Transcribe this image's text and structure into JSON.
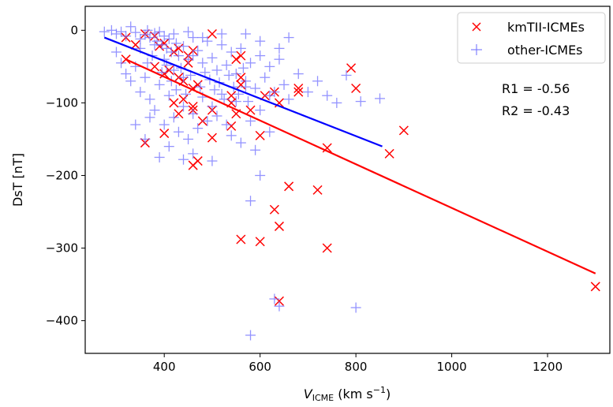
{
  "chart_data": {
    "type": "scatter",
    "xlabel": {
      "main": "V",
      "sub": "ICME",
      "unit_pre": " (km s",
      "unit_sup": "−1",
      "unit_post": ")"
    },
    "ylabel": "DsT [nT]",
    "xlim": [
      235,
      1330
    ],
    "ylim": [
      -445,
      33
    ],
    "xticks": [
      400,
      600,
      800,
      1000,
      1200
    ],
    "yticks": [
      0,
      -100,
      -200,
      -300,
      -400
    ],
    "xtick_labels": [
      "400",
      "600",
      "800",
      "1000",
      "1200"
    ],
    "ytick_labels": [
      "0",
      "−100",
      "−200",
      "−300",
      "−400"
    ],
    "grid": false,
    "legend_position": "top-right",
    "annotations": [
      "R1 = -0.56",
      "R2 = -0.43"
    ],
    "series": [
      {
        "name": "kmTII-ICMEs",
        "marker": "x",
        "color": "#ff0000",
        "points": [
          [
            320,
            -10
          ],
          [
            340,
            -20
          ],
          [
            360,
            -5
          ],
          [
            380,
            -8
          ],
          [
            390,
            -22
          ],
          [
            400,
            -18
          ],
          [
            420,
            -30
          ],
          [
            430,
            -25
          ],
          [
            450,
            -35
          ],
          [
            460,
            -28
          ],
          [
            500,
            -5
          ],
          [
            320,
            -40
          ],
          [
            380,
            -50
          ],
          [
            400,
            -60
          ],
          [
            410,
            -55
          ],
          [
            430,
            -65
          ],
          [
            440,
            -70
          ],
          [
            450,
            -45
          ],
          [
            460,
            -80
          ],
          [
            470,
            -75
          ],
          [
            420,
            -100
          ],
          [
            430,
            -115
          ],
          [
            440,
            -95
          ],
          [
            460,
            -105
          ],
          [
            460,
            -110
          ],
          [
            480,
            -125
          ],
          [
            500,
            -110
          ],
          [
            500,
            -148
          ],
          [
            540,
            -100
          ],
          [
            540,
            -90
          ],
          [
            540,
            -132
          ],
          [
            550,
            -115
          ],
          [
            550,
            -40
          ],
          [
            560,
            -35
          ],
          [
            560,
            -65
          ],
          [
            560,
            -75
          ],
          [
            580,
            -110
          ],
          [
            600,
            -145
          ],
          [
            610,
            -90
          ],
          [
            630,
            -85
          ],
          [
            640,
            -100
          ],
          [
            680,
            -80
          ],
          [
            680,
            -85
          ],
          [
            740,
            -162
          ],
          [
            790,
            -52
          ],
          [
            800,
            -80
          ],
          [
            870,
            -170
          ],
          [
            900,
            -138
          ],
          [
            360,
            -155
          ],
          [
            400,
            -142
          ],
          [
            460,
            -186
          ],
          [
            470,
            -180
          ],
          [
            660,
            -215
          ],
          [
            720,
            -220
          ],
          [
            630,
            -247
          ],
          [
            640,
            -270
          ],
          [
            560,
            -288
          ],
          [
            600,
            -291
          ],
          [
            740,
            -300
          ],
          [
            640,
            -373
          ],
          [
            1300,
            -353
          ]
        ]
      },
      {
        "name": "other-ICMEs",
        "marker": "+",
        "color": "#7070ff",
        "points": [
          [
            275,
            -2
          ],
          [
            290,
            0
          ],
          [
            300,
            -5
          ],
          [
            310,
            -2
          ],
          [
            320,
            -8
          ],
          [
            330,
            5
          ],
          [
            340,
            -3
          ],
          [
            350,
            -12
          ],
          [
            360,
            -6
          ],
          [
            365,
            0
          ],
          [
            370,
            -10
          ],
          [
            380,
            -4
          ],
          [
            385,
            -15
          ],
          [
            390,
            -2
          ],
          [
            395,
            -20
          ],
          [
            400,
            -8
          ],
          [
            405,
            -25
          ],
          [
            410,
            -12
          ],
          [
            415,
            -30
          ],
          [
            420,
            -5
          ],
          [
            425,
            -18
          ],
          [
            430,
            -35
          ],
          [
            440,
            -22
          ],
          [
            450,
            -40
          ],
          [
            460,
            -10
          ],
          [
            470,
            -28
          ],
          [
            480,
            -45
          ],
          [
            490,
            -15
          ],
          [
            500,
            -38
          ],
          [
            510,
            -55
          ],
          [
            520,
            -20
          ],
          [
            530,
            -48
          ],
          [
            540,
            -30
          ],
          [
            550,
            -60
          ],
          [
            560,
            -25
          ],
          [
            570,
            -70
          ],
          [
            580,
            -45
          ],
          [
            590,
            -80
          ],
          [
            600,
            -35
          ],
          [
            610,
            -65
          ],
          [
            620,
            -50
          ],
          [
            630,
            -85
          ],
          [
            640,
            -40
          ],
          [
            650,
            -75
          ],
          [
            660,
            -95
          ],
          [
            680,
            -60
          ],
          [
            700,
            -85
          ],
          [
            720,
            -70
          ],
          [
            740,
            -90
          ],
          [
            760,
            -100
          ],
          [
            780,
            -62
          ],
          [
            810,
            -98
          ],
          [
            850,
            -94
          ],
          [
            300,
            -30
          ],
          [
            310,
            -45
          ],
          [
            320,
            -60
          ],
          [
            330,
            -70
          ],
          [
            340,
            -50
          ],
          [
            350,
            -85
          ],
          [
            360,
            -65
          ],
          [
            370,
            -95
          ],
          [
            380,
            -110
          ],
          [
            390,
            -75
          ],
          [
            400,
            -130
          ],
          [
            410,
            -90
          ],
          [
            420,
            -120
          ],
          [
            430,
            -140
          ],
          [
            440,
            -105
          ],
          [
            450,
            -150
          ],
          [
            460,
            -115
          ],
          [
            470,
            -135
          ],
          [
            480,
            -92
          ],
          [
            490,
            -125
          ],
          [
            500,
            -105
          ],
          [
            510,
            -118
          ],
          [
            520,
            -88
          ],
          [
            530,
            -130
          ],
          [
            540,
            -145
          ],
          [
            550,
            -98
          ],
          [
            560,
            -155
          ],
          [
            570,
            -78
          ],
          [
            580,
            -125
          ],
          [
            590,
            -165
          ],
          [
            600,
            -110
          ],
          [
            620,
            -140
          ],
          [
            340,
            -130
          ],
          [
            360,
            -150
          ],
          [
            370,
            -120
          ],
          [
            390,
            -175
          ],
          [
            410,
            -160
          ],
          [
            440,
            -178
          ],
          [
            460,
            -170
          ],
          [
            500,
            -180
          ],
          [
            380,
            -20
          ],
          [
            400,
            -40
          ],
          [
            420,
            -55
          ],
          [
            440,
            -65
          ],
          [
            460,
            -35
          ],
          [
            350,
            -25
          ],
          [
            365,
            -45
          ],
          [
            375,
            -35
          ],
          [
            395,
            -58
          ],
          [
            405,
            -48
          ],
          [
            415,
            -70
          ],
          [
            425,
            -82
          ],
          [
            435,
            -52
          ],
          [
            445,
            -88
          ],
          [
            455,
            -62
          ],
          [
            475,
            -78
          ],
          [
            485,
            -58
          ],
          [
            495,
            -68
          ],
          [
            505,
            -82
          ],
          [
            515,
            -72
          ],
          [
            525,
            -95
          ],
          [
            535,
            -62
          ],
          [
            545,
            -78
          ],
          [
            555,
            -88
          ],
          [
            565,
            -52
          ],
          [
            575,
            -98
          ],
          [
            600,
            -200
          ],
          [
            580,
            -235
          ],
          [
            640,
            -380
          ],
          [
            630,
            -370
          ],
          [
            800,
            -382
          ],
          [
            580,
            -420
          ],
          [
            620,
            -90
          ],
          [
            640,
            -25
          ],
          [
            660,
            -10
          ],
          [
            570,
            -5
          ],
          [
            600,
            -15
          ],
          [
            520,
            -5
          ],
          [
            480,
            -10
          ],
          [
            450,
            -2
          ]
        ]
      }
    ],
    "fit_lines": [
      {
        "color": "#ff0000",
        "x": [
          320,
          1300
        ],
        "y": [
          -40,
          -335
        ]
      },
      {
        "color": "#0000ff",
        "x": [
          275,
          855
        ],
        "y": [
          -10,
          -160
        ]
      }
    ]
  }
}
